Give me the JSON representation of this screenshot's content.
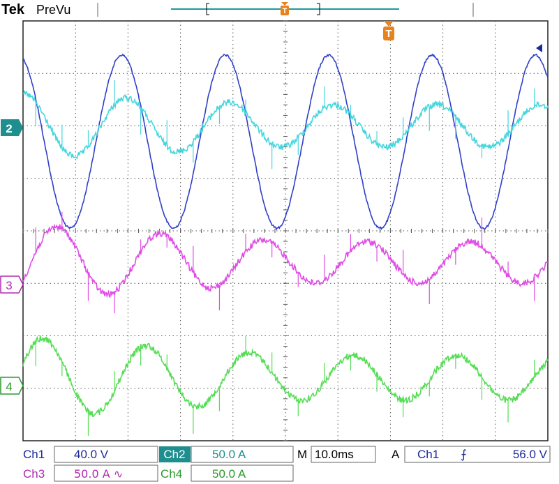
{
  "header": {
    "brand": "Tek",
    "mode": "PreVu",
    "trigger_marker_label": "T"
  },
  "channels": [
    {
      "id": 1,
      "color": "#2f3fc8",
      "marker": ""
    },
    {
      "id": 2,
      "color": "#45d6de",
      "marker": "2"
    },
    {
      "id": 3,
      "color": "#e04ce6",
      "marker": "3"
    },
    {
      "id": 4,
      "color": "#55dd55",
      "marker": "4"
    }
  ],
  "readout": {
    "ch1_label": "Ch1",
    "ch1_scale": "40.0 V",
    "ch2_label": "Ch2",
    "ch2_scale": "50.0 A",
    "ch3_label": "Ch3",
    "ch3_scale": "50.0 A ∿",
    "ch4_label": "Ch4",
    "ch4_scale": "50.0 A",
    "m_label": "M",
    "timebase": "10.0ms",
    "a_label": "A",
    "trigger_source": "Ch1",
    "trigger_slope": "⨍",
    "trigger_level": "56.0 V"
  },
  "chart_data": {
    "type": "line",
    "grid": true,
    "x_divisions": 10,
    "y_divisions": 8,
    "x_range_div": [
      0,
      10
    ],
    "y_range_div": [
      0,
      8
    ],
    "series": [
      {
        "channel": 1,
        "color": "#2f3fc8",
        "center_div": 2.3,
        "amplitude_div": 1.65,
        "period_div": 1.97,
        "phase": 1.85,
        "noise_div": 0.02,
        "decay": 0.0
      },
      {
        "channel": 2,
        "color": "#45d6de",
        "center_div": 2.0,
        "amplitude_div": 0.62,
        "period_div": 1.97,
        "phase": 1.55,
        "noise_div": 0.06,
        "decay": 0.35
      },
      {
        "channel": 3,
        "color": "#e04ce6",
        "center_div": 4.6,
        "amplitude_div": 0.72,
        "period_div": 1.97,
        "phase": -0.5,
        "noise_div": 0.06,
        "decay": 0.45
      },
      {
        "channel": 4,
        "color": "#55dd55",
        "center_div": 6.8,
        "amplitude_div": 0.78,
        "period_div": 1.97,
        "phase": 0.35,
        "noise_div": 0.06,
        "decay": 0.45
      }
    ]
  }
}
